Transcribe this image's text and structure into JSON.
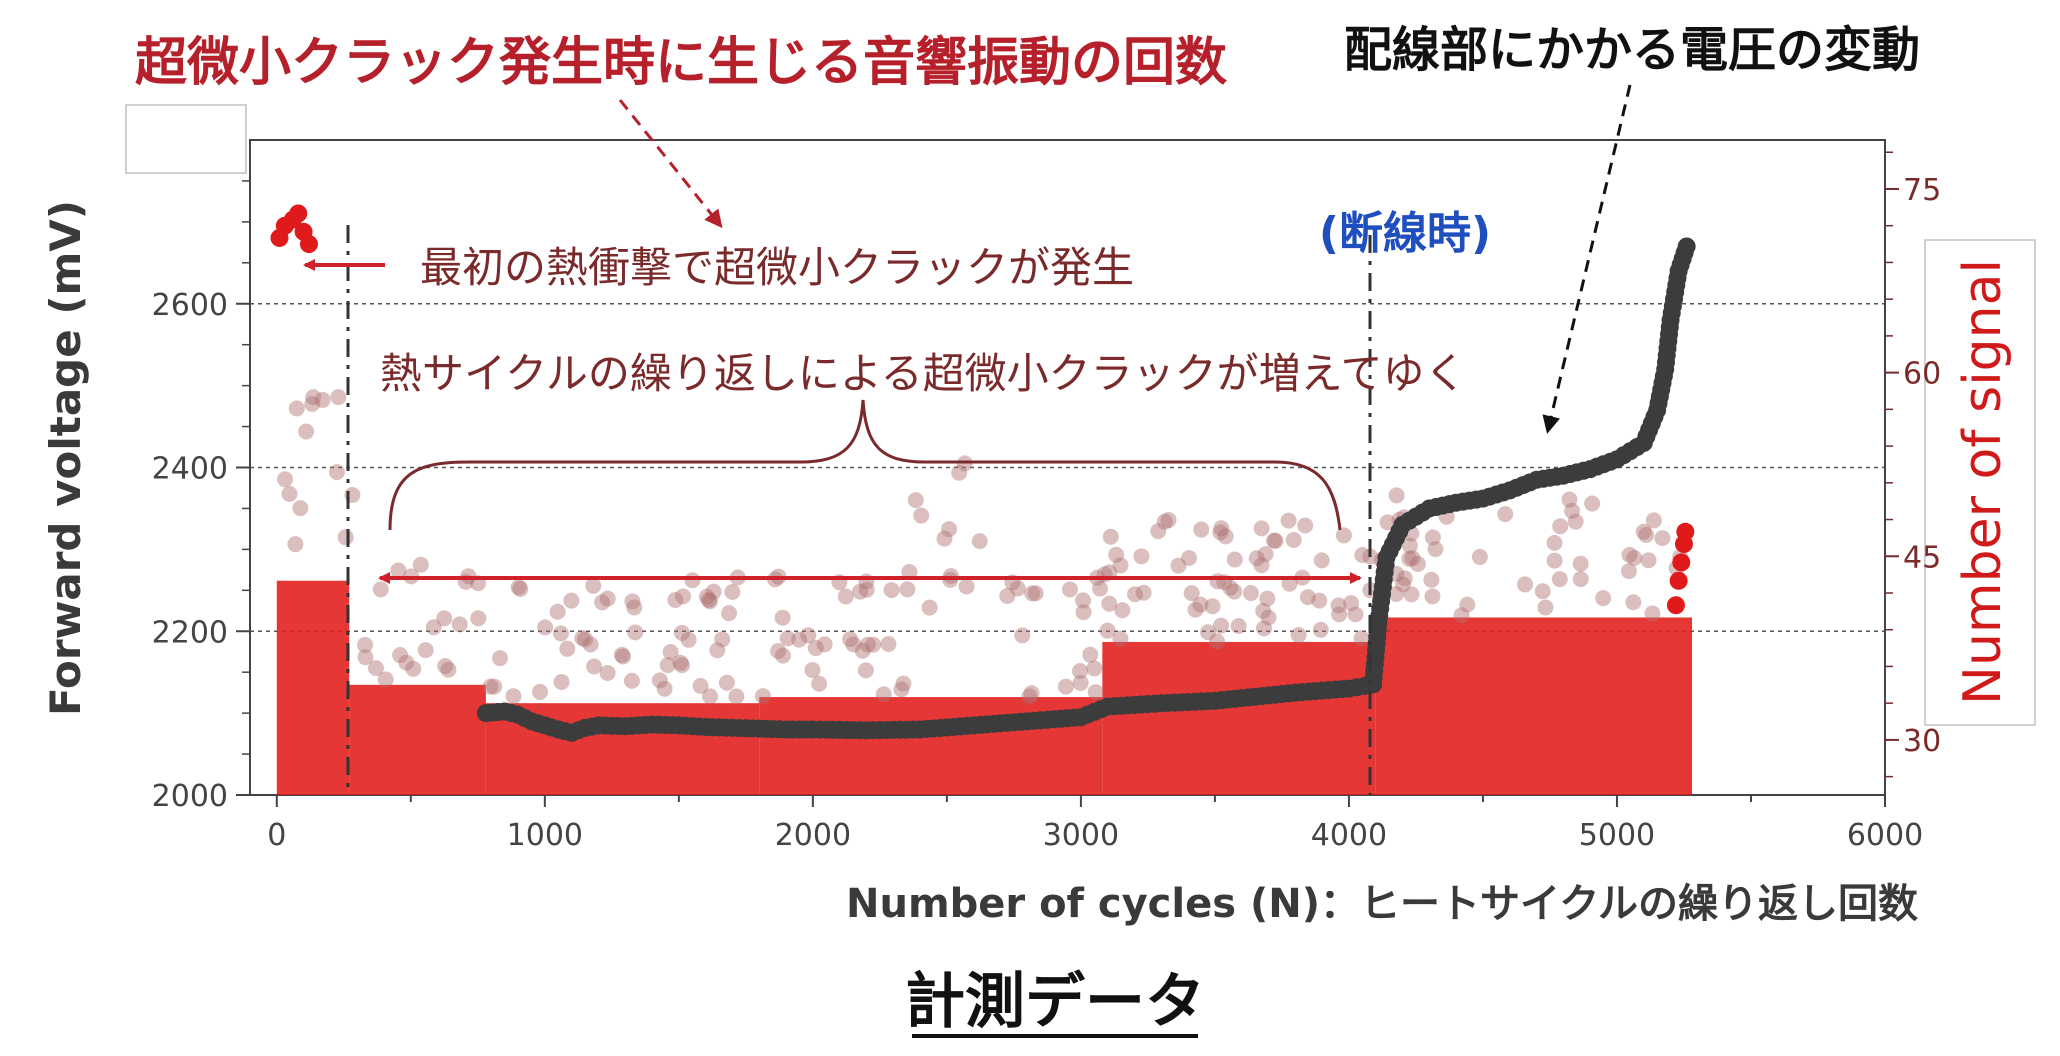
{
  "chart_data": {
    "type": "scatter",
    "title": "",
    "xlabel": "Number of cycles (N)：ヒートサイクルの繰り返し回数",
    "ylabel": "Forward voltage (mV)",
    "y2label": "Number of signal",
    "xlim": [
      -100,
      6000
    ],
    "ylim": [
      2000,
      2800
    ],
    "y2lim": [
      25.5,
      79
    ],
    "x_ticks": [
      0,
      1000,
      2000,
      3000,
      4000,
      5000,
      6000
    ],
    "y_ticks": [
      2000,
      2200,
      2400,
      2600
    ],
    "y2_ticks": [
      30,
      45,
      60,
      75
    ],
    "grid": "horizontal dashed at 2200, 2400, 2600",
    "series": [
      {
        "name": "配線部にかかる電圧の変動",
        "color": "#3c3c3c",
        "points": [
          [
            780,
            2100
          ],
          [
            850,
            2102
          ],
          [
            900,
            2098
          ],
          [
            950,
            2090
          ],
          [
            1000,
            2085
          ],
          [
            1050,
            2080
          ],
          [
            1100,
            2076
          ],
          [
            1150,
            2082
          ],
          [
            1200,
            2085
          ],
          [
            1300,
            2084
          ],
          [
            1400,
            2086
          ],
          [
            1500,
            2085
          ],
          [
            1600,
            2083
          ],
          [
            1700,
            2082
          ],
          [
            1800,
            2081
          ],
          [
            1900,
            2080
          ],
          [
            2000,
            2080
          ],
          [
            2200,
            2079
          ],
          [
            2400,
            2080
          ],
          [
            2600,
            2085
          ],
          [
            2800,
            2090
          ],
          [
            3000,
            2095
          ],
          [
            3100,
            2108
          ],
          [
            3300,
            2112
          ],
          [
            3500,
            2115
          ],
          [
            3800,
            2125
          ],
          [
            4000,
            2130
          ],
          [
            4090,
            2135
          ],
          [
            4110,
            2210
          ],
          [
            4140,
            2290
          ],
          [
            4200,
            2330
          ],
          [
            4300,
            2350
          ],
          [
            4400,
            2357
          ],
          [
            4500,
            2362
          ],
          [
            4600,
            2372
          ],
          [
            4700,
            2385
          ],
          [
            4800,
            2390
          ],
          [
            4900,
            2398
          ],
          [
            5000,
            2410
          ],
          [
            5100,
            2430
          ],
          [
            5150,
            2470
          ],
          [
            5180,
            2520
          ],
          [
            5200,
            2580
          ],
          [
            5230,
            2640
          ],
          [
            5260,
            2670
          ]
        ]
      },
      {
        "name": "超微小クラック発生時に生じる音響振動の回数",
        "color": "#e01a1a",
        "points": [
          [
            10,
            71
          ],
          [
            30,
            72
          ],
          [
            60,
            72.5
          ],
          [
            80,
            73
          ],
          [
            100,
            71.5
          ],
          [
            120,
            70.5
          ],
          [
            5220,
            41
          ],
          [
            5230,
            43
          ],
          [
            5240,
            44.5
          ],
          [
            5250,
            46
          ],
          [
            5255,
            47
          ]
        ]
      }
    ]
  },
  "annotations": {
    "top_left_title": "超微小クラック発生時に生じる音響振動の回数",
    "top_right_title": "配線部にかかる電圧の変動",
    "initial_crack": "最初の熱衝撃で超微小クラックが発生",
    "crack_increase": "熱サイクルの繰り返しによる超微小クラックが増えてゆく",
    "break_point": "(断線時)",
    "caption": "計測データ"
  },
  "colors": {
    "red": "#e01a1a",
    "dark_red_text": "#b5202a",
    "annotation_brown": "#7a2a2a",
    "blue": "#1f4fbf",
    "dark_series": "#3c3c3c"
  }
}
